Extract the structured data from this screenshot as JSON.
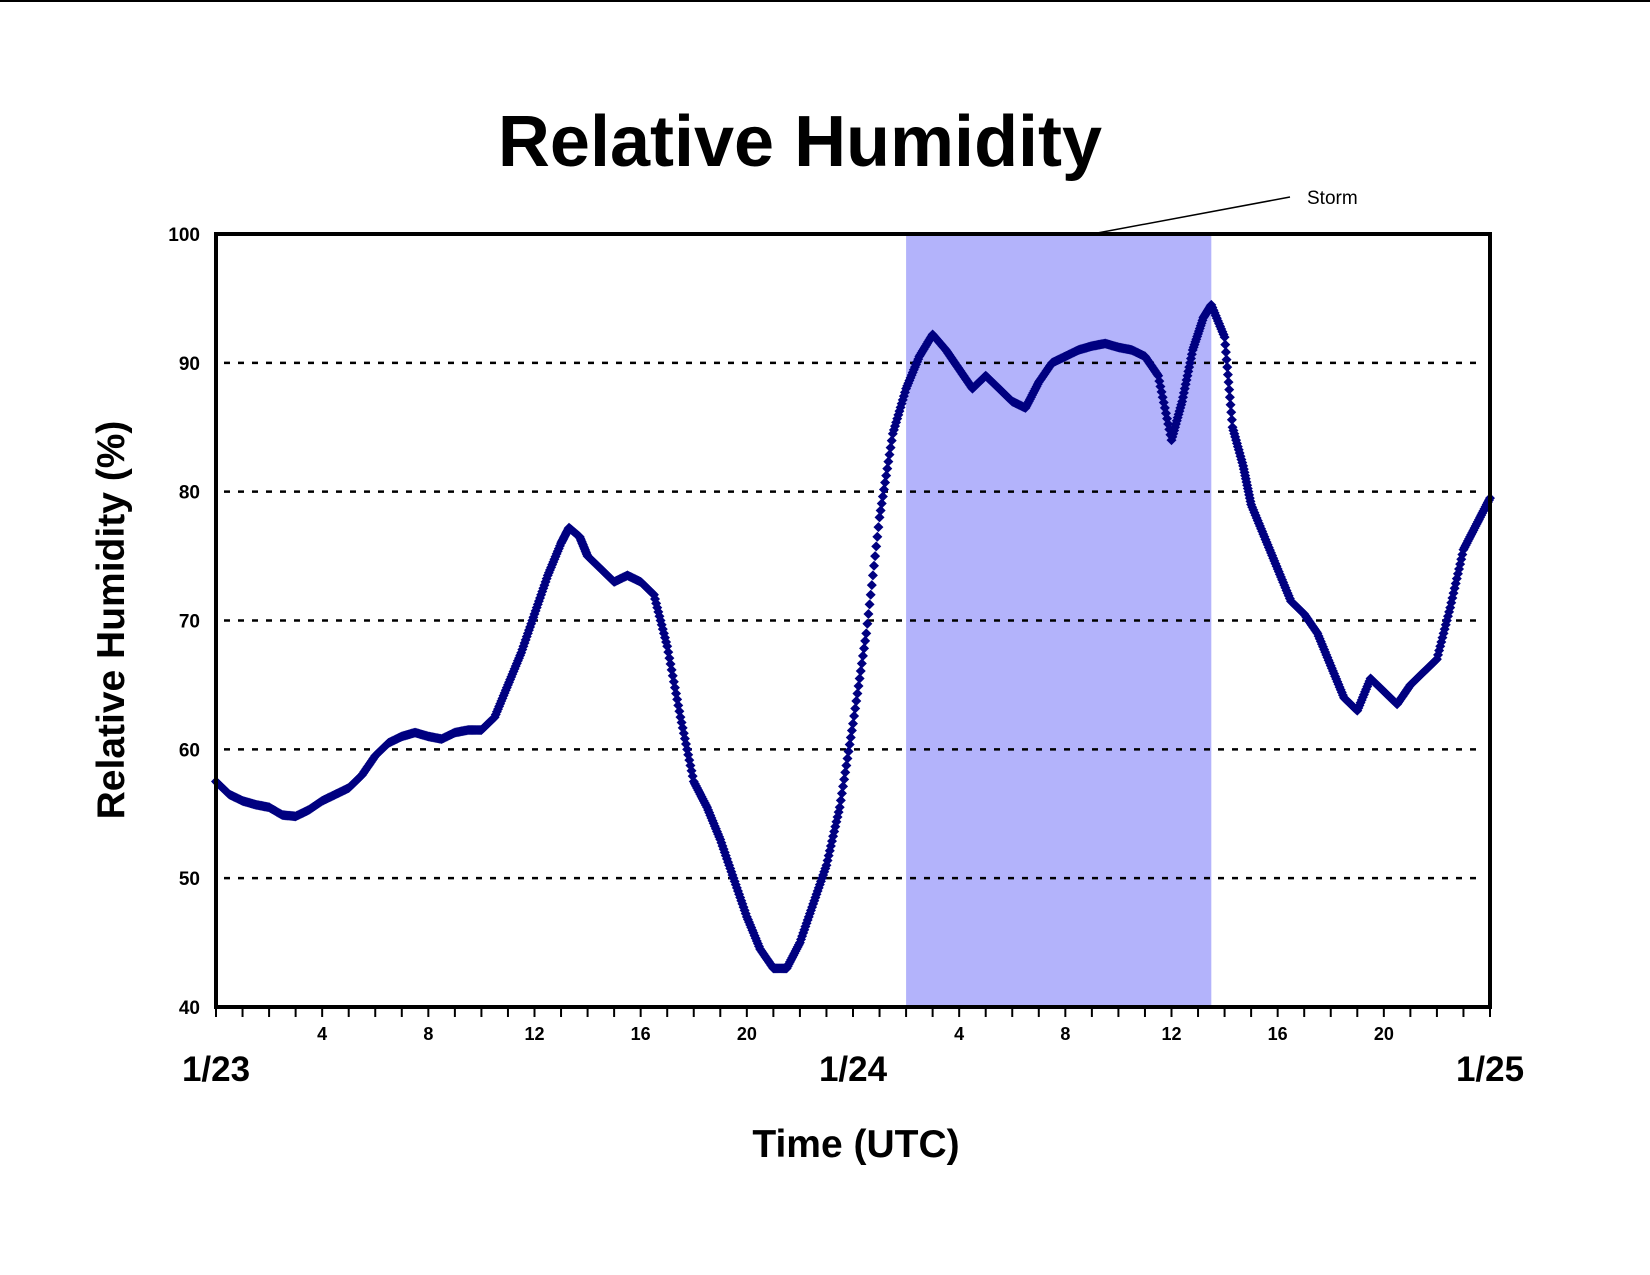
{
  "chart_data": {
    "type": "scatter",
    "title": "Relative Humidity",
    "xlabel": "Time (UTC)",
    "ylabel": "Relative Humidity (%)",
    "ylim": [
      40,
      100
    ],
    "yticks": [
      "40",
      "50",
      "60",
      "70",
      "80",
      "90",
      "100"
    ],
    "xlim_hours": [
      0,
      48
    ],
    "xtick_labels": [
      {
        "hour": 4,
        "label": "4"
      },
      {
        "hour": 8,
        "label": "8"
      },
      {
        "hour": 12,
        "label": "12"
      },
      {
        "hour": 16,
        "label": "16"
      },
      {
        "hour": 20,
        "label": "20"
      },
      {
        "hour": 28,
        "label": "4"
      },
      {
        "hour": 32,
        "label": "8"
      },
      {
        "hour": 36,
        "label": "12"
      },
      {
        "hour": 40,
        "label": "16"
      },
      {
        "hour": 44,
        "label": "20"
      }
    ],
    "date_labels": [
      {
        "hour": 0,
        "label": "1/23"
      },
      {
        "hour": 24,
        "label": "1/24"
      },
      {
        "hour": 48,
        "label": "1/25"
      }
    ],
    "grid": "horizontal dashed",
    "marker_color": "#000080",
    "storm_shading": {
      "start_hour": 26.0,
      "end_hour": 37.5,
      "color": "#b3b3fb"
    },
    "annotation": "Storm",
    "series": [
      {
        "points": [
          [
            0,
            57.5
          ],
          [
            0.5,
            56.5
          ],
          [
            1,
            56
          ],
          [
            1.5,
            55.7
          ],
          [
            2,
            55.5
          ],
          [
            2.5,
            54.9
          ],
          [
            3,
            54.8
          ],
          [
            3.5,
            55.3
          ],
          [
            4,
            56
          ],
          [
            4.5,
            56.5
          ],
          [
            5,
            57
          ],
          [
            5.5,
            58
          ],
          [
            6,
            59.5
          ],
          [
            6.5,
            60.5
          ],
          [
            7,
            61
          ],
          [
            7.5,
            61.3
          ],
          [
            8,
            61
          ],
          [
            8.5,
            60.8
          ],
          [
            9,
            61.3
          ],
          [
            9.5,
            61.5
          ],
          [
            10,
            61.5
          ],
          [
            10.5,
            62.5
          ],
          [
            11,
            65
          ],
          [
            11.5,
            67.5
          ],
          [
            12,
            70.5
          ],
          [
            12.5,
            73.5
          ],
          [
            13,
            76
          ],
          [
            13.3,
            77.2
          ],
          [
            13.7,
            76.5
          ],
          [
            14,
            75
          ],
          [
            14.5,
            74
          ],
          [
            15,
            73
          ],
          [
            15.5,
            73.5
          ],
          [
            16,
            73
          ],
          [
            16.5,
            72
          ],
          [
            17,
            68
          ],
          [
            17.5,
            62.5
          ],
          [
            18,
            57.5
          ],
          [
            18.5,
            55.5
          ],
          [
            19,
            53
          ],
          [
            19.5,
            50
          ],
          [
            20,
            47
          ],
          [
            20.5,
            44.5
          ],
          [
            21,
            43
          ],
          [
            21.5,
            43
          ],
          [
            22,
            45
          ],
          [
            22.5,
            48
          ],
          [
            23,
            51
          ],
          [
            23.5,
            55.5
          ],
          [
            24,
            62
          ],
          [
            24.5,
            69
          ],
          [
            25,
            78
          ],
          [
            25.5,
            84.5
          ],
          [
            26,
            88
          ],
          [
            26.5,
            90.5
          ],
          [
            27,
            92.2
          ],
          [
            27.5,
            91
          ],
          [
            28,
            89.5
          ],
          [
            28.5,
            88
          ],
          [
            29,
            89
          ],
          [
            29.5,
            88
          ],
          [
            30,
            87
          ],
          [
            30.5,
            86.5
          ],
          [
            31,
            88.5
          ],
          [
            31.5,
            90
          ],
          [
            32,
            90.5
          ],
          [
            32.5,
            91
          ],
          [
            33,
            91.3
          ],
          [
            33.5,
            91.5
          ],
          [
            34,
            91.2
          ],
          [
            34.5,
            91
          ],
          [
            35,
            90.5
          ],
          [
            35.5,
            89
          ],
          [
            36,
            84
          ],
          [
            36.4,
            87
          ],
          [
            36.8,
            91
          ],
          [
            37.2,
            93.5
          ],
          [
            37.5,
            94.5
          ],
          [
            38,
            92
          ],
          [
            38.3,
            85
          ],
          [
            38.7,
            82
          ],
          [
            39,
            79
          ],
          [
            39.5,
            76.5
          ],
          [
            40,
            74
          ],
          [
            40.5,
            71.5
          ],
          [
            41,
            70.5
          ],
          [
            41.5,
            69
          ],
          [
            42,
            66.5
          ],
          [
            42.5,
            64
          ],
          [
            43,
            63
          ],
          [
            43.5,
            65.5
          ],
          [
            44,
            64.5
          ],
          [
            44.5,
            63.5
          ],
          [
            45,
            65
          ],
          [
            45.5,
            66
          ],
          [
            46,
            67
          ],
          [
            46.5,
            71
          ],
          [
            47,
            75.5
          ],
          [
            47.5,
            77.5
          ],
          [
            48,
            79.5
          ]
        ]
      }
    ]
  }
}
